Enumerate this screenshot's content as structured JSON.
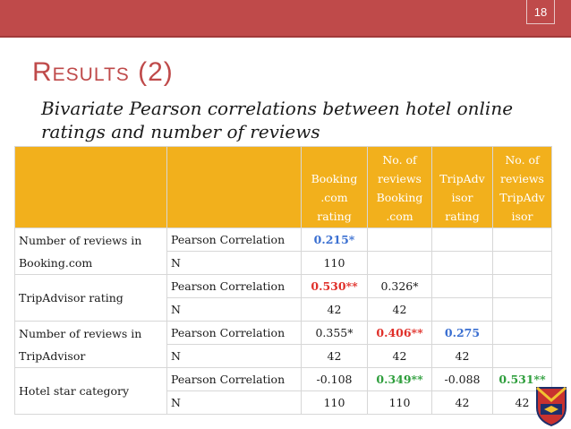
{
  "slide": {
    "number": "18",
    "title": "Results (2)",
    "subtitle": "Bivariate Pearson correlations between hotel online ratings and number of reviews"
  },
  "table": {
    "col_headers": [
      "Booking .com rating",
      "No. of reviews Booking .com",
      "TripAdv isor rating",
      "No. of reviews TripAdv isor"
    ],
    "rows": [
      {
        "group": "Number of reviews in Booking.com",
        "stat": "Pearson Correlation",
        "values": [
          "0.215*",
          "",
          "",
          ""
        ]
      },
      {
        "group": "",
        "stat": "N",
        "values": [
          "110",
          "",
          "",
          ""
        ]
      },
      {
        "group": "TripAdvisor rating",
        "stat": "Pearson Correlation",
        "values": [
          "0.530**",
          "0.326*",
          "",
          ""
        ]
      },
      {
        "group": "",
        "stat": "N",
        "values": [
          "42",
          "42",
          "",
          ""
        ]
      },
      {
        "group": "Number of reviews in TripAdvisor",
        "stat": "Pearson Correlation",
        "values": [
          "0.355*",
          "0.406**",
          "0.275",
          ""
        ]
      },
      {
        "group": "",
        "stat": "N",
        "values": [
          "42",
          "42",
          "42",
          ""
        ]
      },
      {
        "group": "Hotel star category",
        "stat": "Pearson Correlation",
        "values": [
          "-0.108",
          "0.349**",
          "-0.088",
          "0.531**"
        ]
      },
      {
        "group": "",
        "stat": "N",
        "values": [
          "110",
          "110",
          "42",
          "42"
        ]
      }
    ]
  },
  "colors": {
    "accent": "#bf4a4a",
    "header_fill": "#f2b01c",
    "highlight_red": "#e0302a",
    "highlight_green": "#2e9e3c",
    "highlight_blue": "#3a6fd1"
  }
}
